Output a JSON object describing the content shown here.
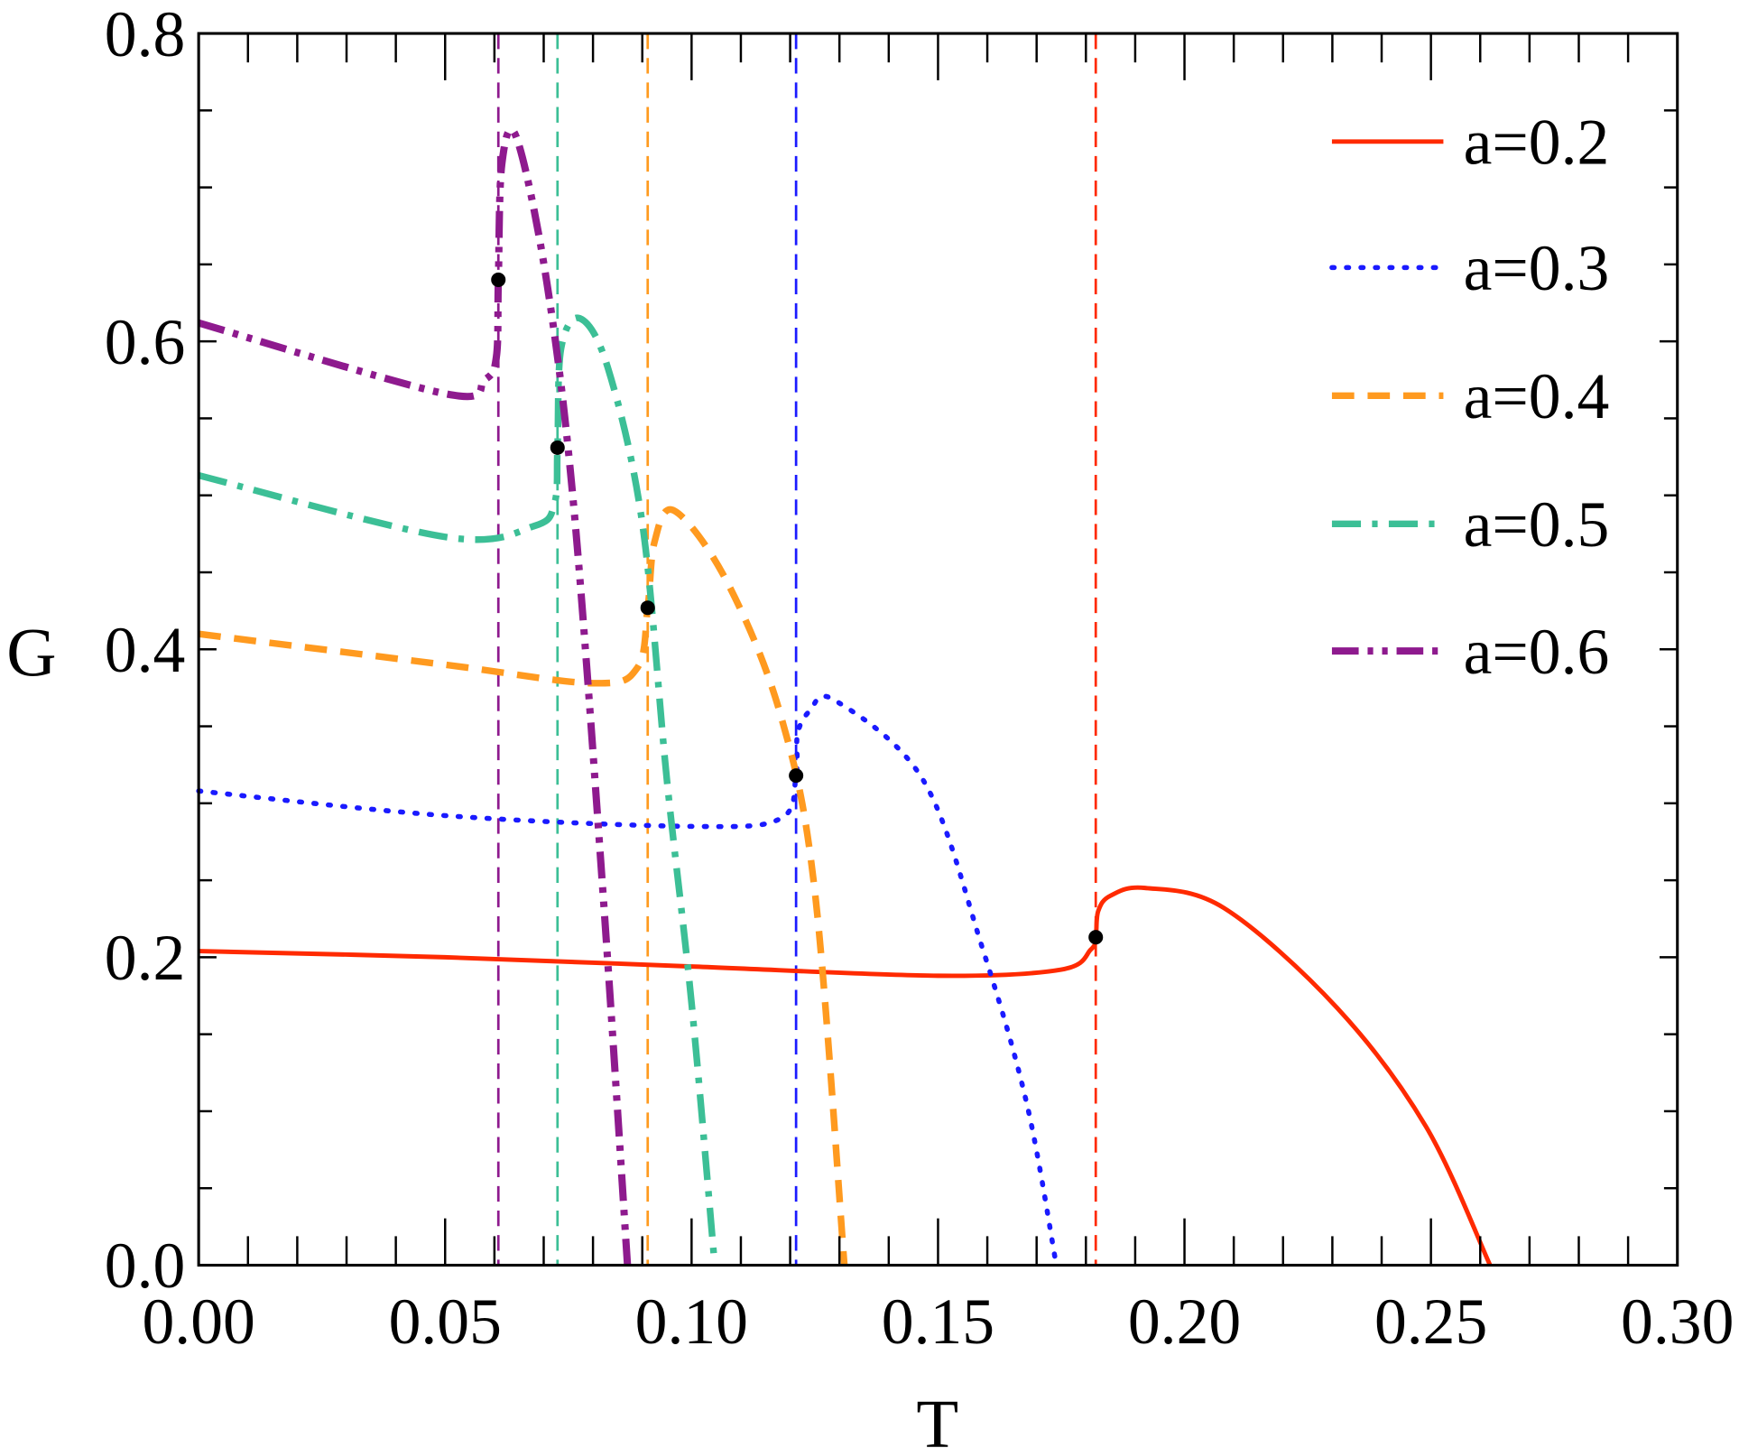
{
  "chart_data": {
    "type": "line",
    "xlabel": "T",
    "ylabel": "G",
    "xlim": [
      0,
      0.3
    ],
    "ylim": [
      0,
      0.8
    ],
    "xticks": [
      "0.00",
      "0.05",
      "0.10",
      "0.15",
      "0.20",
      "0.25",
      "0.30"
    ],
    "yticks": [
      "0.0",
      "0.2",
      "0.4",
      "0.6",
      "0.8"
    ],
    "grid": false,
    "legend_position": "top-right",
    "series": [
      {
        "name": "a=0.2",
        "color": "#ff2a00",
        "style": "solid",
        "critical_T": 0.182,
        "critical_G": 0.213,
        "x": [
          0,
          0.05,
          0.1,
          0.15,
          0.175,
          0.181,
          0.182,
          0.1825,
          0.185,
          0.192,
          0.208,
          0.231,
          0.249,
          0.262
        ],
        "y": [
          0.204,
          0.2,
          0.194,
          0.188,
          0.192,
          0.205,
          0.213,
          0.23,
          0.24,
          0.245,
          0.232,
          0.167,
          0.09,
          0
        ]
      },
      {
        "name": "a=0.3",
        "color": "#1a1aff",
        "style": "dotted",
        "critical_T": 0.1212,
        "critical_G": 0.318,
        "x": [
          0,
          0.05,
          0.1,
          0.118,
          0.1212,
          0.1215,
          0.124,
          0.129,
          0.147,
          0.159,
          0.168,
          0.174
        ],
        "y": [
          0.308,
          0.292,
          0.285,
          0.29,
          0.318,
          0.345,
          0.36,
          0.367,
          0.315,
          0.206,
          0.105,
          0
        ]
      },
      {
        "name": "a=0.4",
        "color": "#ff9a1f",
        "style": "dashed",
        "critical_T": 0.0911,
        "critical_G": 0.427,
        "x": [
          0,
          0.05,
          0.08,
          0.089,
          0.0911,
          0.0925,
          0.0965,
          0.107,
          0.118,
          0.125,
          0.131
        ],
        "y": [
          0.41,
          0.39,
          0.378,
          0.388,
          0.427,
          0.47,
          0.49,
          0.445,
          0.358,
          0.243,
          0
        ]
      },
      {
        "name": "a=0.5",
        "color": "#3cbf96",
        "style": "dashdot",
        "critical_T": 0.0728,
        "critical_G": 0.531,
        "x": [
          0,
          0.05,
          0.068,
          0.0722,
          0.0728,
          0.0735,
          0.0773,
          0.083,
          0.09,
          0.095,
          0.1,
          0.1047
        ],
        "y": [
          0.513,
          0.473,
          0.48,
          0.495,
          0.531,
          0.595,
          0.615,
          0.583,
          0.482,
          0.315,
          0.17,
          0
        ]
      },
      {
        "name": "a=0.6",
        "color": "#8e1a8e",
        "style": "dashdotdot",
        "critical_T": 0.0608,
        "critical_G": 0.64,
        "x": [
          0,
          0.05,
          0.058,
          0.0604,
          0.0608,
          0.0615,
          0.0644,
          0.0705,
          0.076,
          0.082,
          0.087
        ],
        "y": [
          0.612,
          0.566,
          0.575,
          0.59,
          0.64,
          0.715,
          0.733,
          0.641,
          0.496,
          0.243,
          0
        ]
      }
    ]
  }
}
